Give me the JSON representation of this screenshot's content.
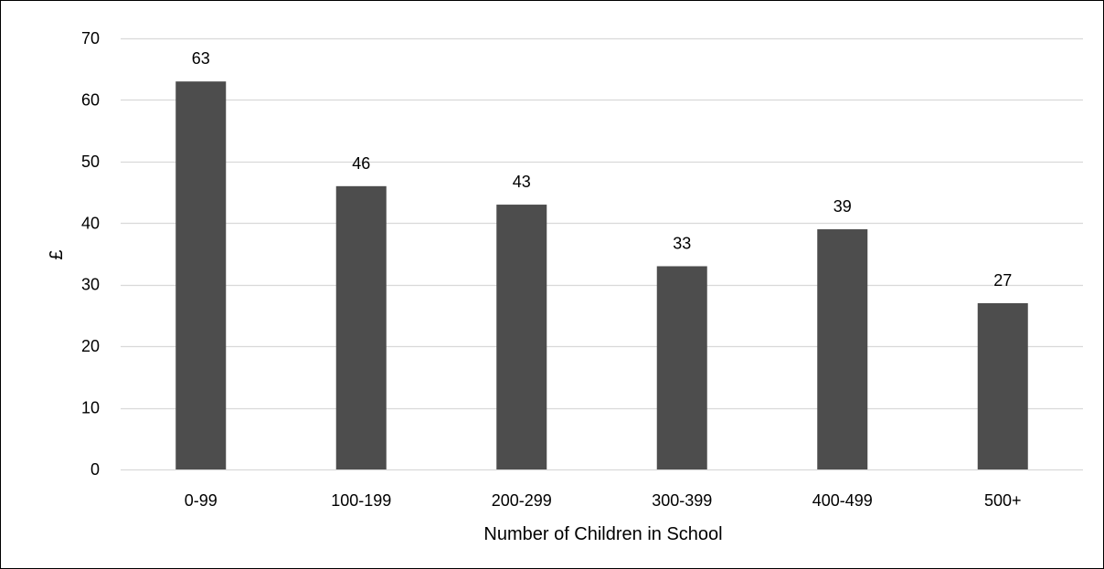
{
  "chart_data": {
    "type": "bar",
    "title": "",
    "xlabel": "Number of Children in School",
    "ylabel": "£",
    "categories": [
      "0-99",
      "100-199",
      "200-299",
      "300-399",
      "400-499",
      "500+"
    ],
    "values": [
      63,
      46,
      43,
      33,
      39,
      27
    ],
    "ylim": [
      0,
      70
    ],
    "yticks": [
      0,
      10,
      20,
      30,
      40,
      50,
      60,
      70
    ],
    "grid": true,
    "legend": "none",
    "data_labels": true,
    "colors": {
      "bar": "#4d4d4d",
      "grid": "#d9d9d9",
      "axis": "#d9d9d9",
      "text": "#000000"
    }
  }
}
